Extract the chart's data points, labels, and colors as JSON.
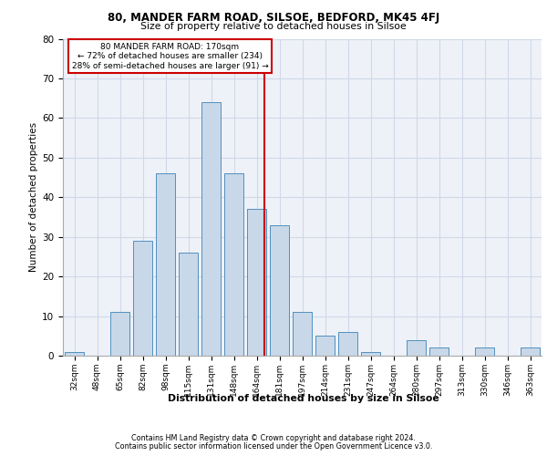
{
  "title1": "80, MANDER FARM ROAD, SILSOE, BEDFORD, MK45 4FJ",
  "title2": "Size of property relative to detached houses in Silsoe",
  "xlabel": "Distribution of detached houses by size in Silsoe",
  "ylabel": "Number of detached properties",
  "footer1": "Contains HM Land Registry data © Crown copyright and database right 2024.",
  "footer2": "Contains public sector information licensed under the Open Government Licence v3.0.",
  "bar_labels": [
    "32sqm",
    "48sqm",
    "65sqm",
    "82sqm",
    "98sqm",
    "115sqm",
    "131sqm",
    "148sqm",
    "164sqm",
    "181sqm",
    "197sqm",
    "214sqm",
    "231sqm",
    "247sqm",
    "264sqm",
    "280sqm",
    "297sqm",
    "313sqm",
    "330sqm",
    "346sqm",
    "363sqm"
  ],
  "bar_values": [
    1,
    0,
    11,
    29,
    46,
    26,
    64,
    46,
    37,
    33,
    11,
    5,
    6,
    1,
    0,
    4,
    2,
    0,
    2,
    0,
    2
  ],
  "bar_color": "#c8d8e8",
  "bar_edge_color": "#5090c0",
  "property_label": "80 MANDER FARM ROAD: 170sqm",
  "annotation_line1": "← 72% of detached houses are smaller (234)",
  "annotation_line2": "28% of semi-detached houses are larger (91) →",
  "vline_color": "#cc0000",
  "annotation_box_edge": "#cc0000",
  "ylim": [
    0,
    80
  ],
  "yticks": [
    0,
    10,
    20,
    30,
    40,
    50,
    60,
    70,
    80
  ],
  "grid_color": "#d0d8e8",
  "bg_color": "#eef2f8",
  "bar_width": 0.85,
  "vline_x": 8.35
}
